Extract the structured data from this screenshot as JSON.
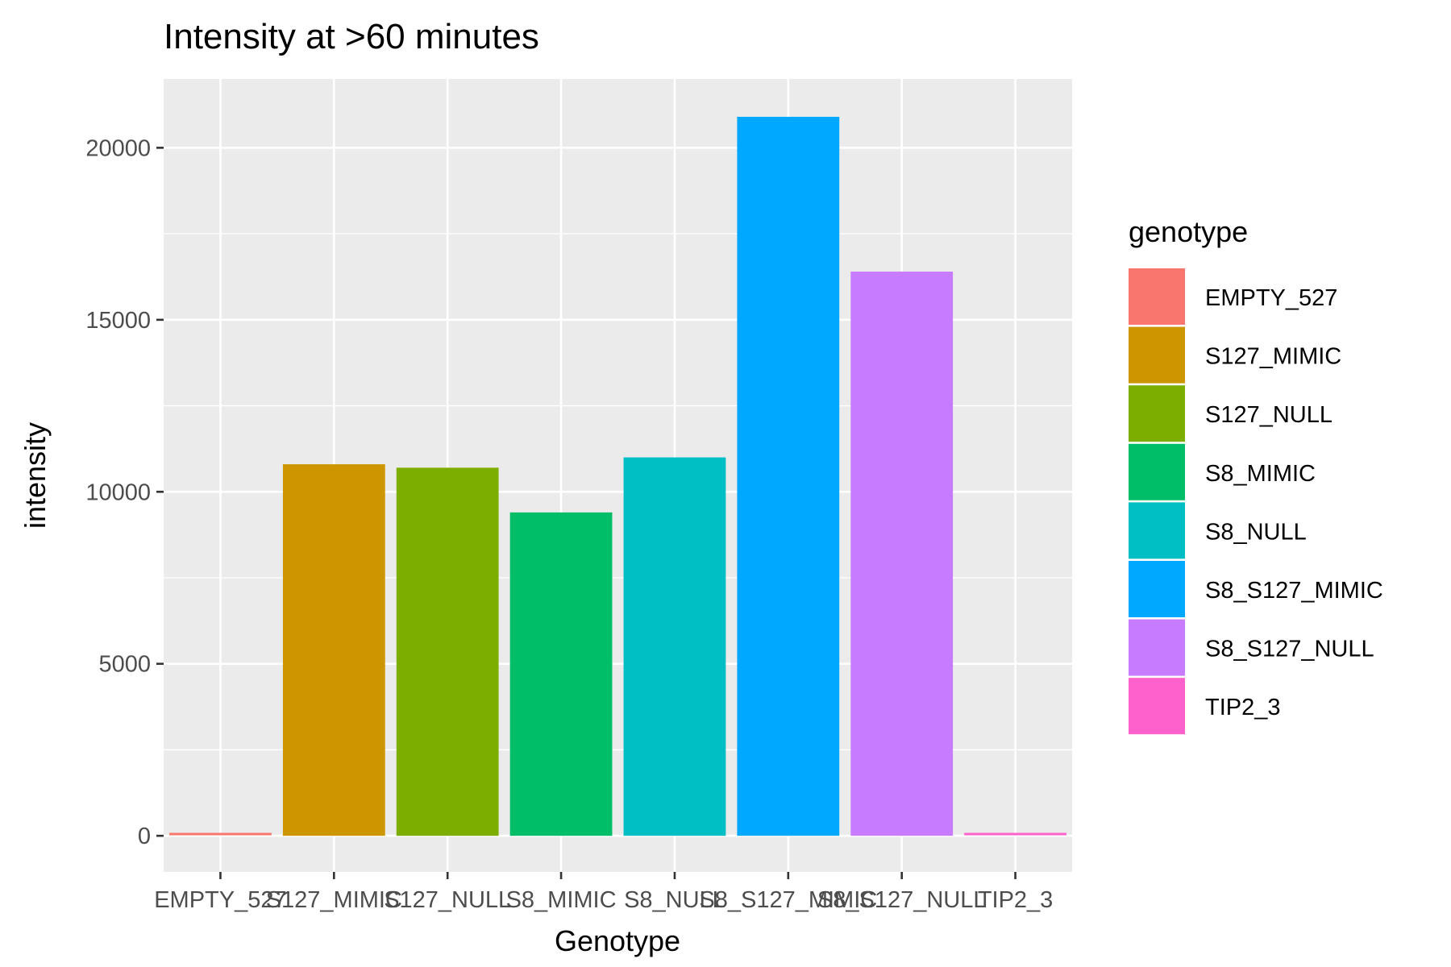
{
  "chart_data": {
    "type": "bar",
    "title": "Intensity at >60 minutes",
    "xlabel": "Genotype",
    "ylabel": "intensity",
    "categories": [
      "EMPTY_527",
      "S127_MIMIC",
      "S127_NULL",
      "S8_MIMIC",
      "S8_NULL",
      "S8_S127_MIMIC",
      "S8_S127_NULL",
      "TIP2_3"
    ],
    "values": [
      50,
      10800,
      10700,
      9400,
      11000,
      20900,
      16400,
      50
    ],
    "colors": [
      "#F8766D",
      "#CD9600",
      "#7CAE00",
      "#00BE67",
      "#00BFC4",
      "#00A9FF",
      "#C77CFF",
      "#FF61CC"
    ],
    "yticks": [
      0,
      5000,
      10000,
      15000,
      20000
    ],
    "ylim": [
      -1050,
      22000
    ],
    "grid": true,
    "panel_background": "#EBEBEB",
    "legend": {
      "title": "genotype",
      "position": "right",
      "entries": [
        "EMPTY_527",
        "S127_MIMIC",
        "S127_NULL",
        "S8_MIMIC",
        "S8_NULL",
        "S8_S127_MIMIC",
        "S8_S127_NULL",
        "TIP2_3"
      ]
    }
  }
}
